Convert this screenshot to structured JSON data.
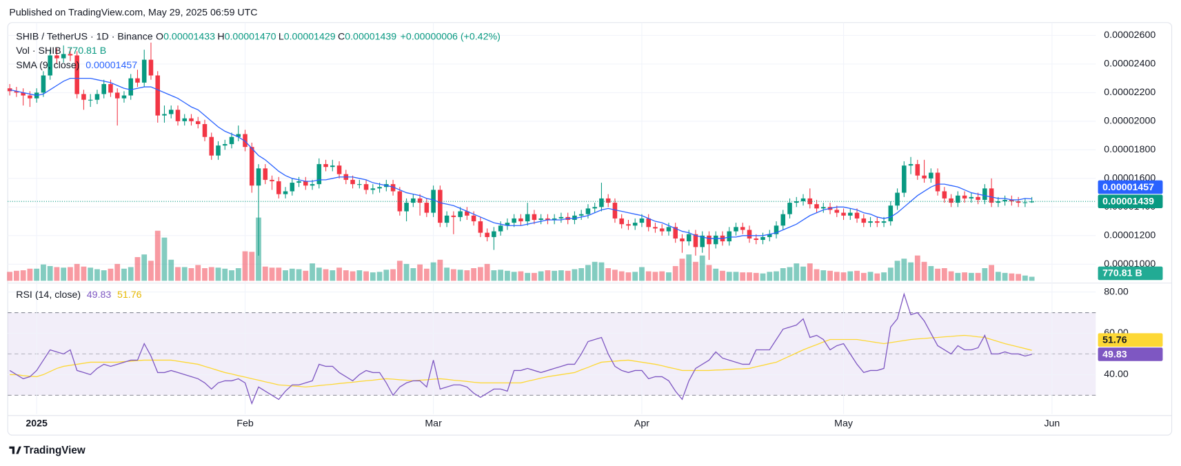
{
  "chart_data": {
    "type": "candlestick",
    "published": "Published on TradingView.com, May 29, 2025 06:59 UTC",
    "brand": "TradingView",
    "legend": {
      "symbol": "SHIB / TetherUS · 1D · Binance",
      "fields": [
        {
          "key": "O",
          "value": "0.00001433"
        },
        {
          "key": "H",
          "value": "0.00001470"
        },
        {
          "key": "L",
          "value": "0.00001429"
        },
        {
          "key": "C",
          "value": "0.00001439"
        }
      ],
      "change": "+0.00000006 (+0.42%)"
    },
    "volume_legend": {
      "name": "Vol · SHIB",
      "value": "770.81 B"
    },
    "sma_legend": {
      "name": "SMA (9, close)",
      "value": "0.00001457"
    },
    "rsi_legend": {
      "name": "RSI (14, close)",
      "value": "49.83",
      "ma_value": "51.76"
    },
    "up_color": "#089981",
    "down_color": "#f23645",
    "sma_color": "#2962ff",
    "rsi_color": "#7e57c2",
    "rsi_ma_color": "#fdd835",
    "xlim": [
      -0.3,
      161.5
    ],
    "xticks": [
      {
        "value": 4,
        "label": "2025"
      },
      {
        "value": 35,
        "label": "Feb"
      },
      {
        "value": 63,
        "label": "Mar"
      },
      {
        "value": 94,
        "label": "Apr"
      },
      {
        "value": 124,
        "label": "May"
      },
      {
        "value": 155,
        "label": "Jun"
      }
    ],
    "ylim": [
      8.84e-06,
      2.674e-05
    ],
    "yticks": [
      {
        "value": 2.6e-05,
        "label": "0.00002600"
      },
      {
        "value": 2.4e-05,
        "label": "0.00002400"
      },
      {
        "value": 2.2e-05,
        "label": "0.00002200"
      },
      {
        "value": 2e-05,
        "label": "0.00002000"
      },
      {
        "value": 1.8e-05,
        "label": "0.00001800"
      },
      {
        "value": 1.6e-05,
        "label": "0.00001600"
      },
      {
        "value": 1.4e-05,
        "label": "0.00001400"
      },
      {
        "value": 1.2e-05,
        "label": "0.00001200"
      },
      {
        "value": 1e-05,
        "label": "0.00001000"
      }
    ],
    "rsi_ylim": [
      20.9,
      83.6
    ],
    "rsi_yticks": [
      {
        "value": 80,
        "label": "80.00"
      },
      {
        "value": 60,
        "label": "60.00"
      },
      {
        "value": 40,
        "label": "40.00"
      }
    ],
    "rsi_levels": [
      70,
      50,
      30
    ],
    "grid": true,
    "open": [
      2.23e-05,
      2.21e-05,
      2.2e-05,
      2.18e-05,
      2.16e-05,
      2.2e-05,
      2.32e-05,
      2.46e-05,
      2.44e-05,
      2.47e-05,
      2.46e-05,
      2.19e-05,
      2.15e-05,
      2.15e-05,
      2.19e-05,
      2.26e-05,
      2.2e-05,
      2.16e-05,
      2.18e-05,
      2.3e-05,
      2.27e-05,
      2.43e-05,
      2.32e-05,
      2.04e-05,
      2.05e-05,
      2.08e-05,
      2e-05,
      2.02e-05,
      2e-05,
      1.98e-05,
      1.89e-05,
      1.76e-05,
      1.83e-05,
      1.84e-05,
      1.89e-05,
      1.91e-05,
      1.82e-05,
      1.55e-05,
      1.67e-05,
      1.59e-05,
      1.58e-05,
      1.49e-05,
      1.51e-05,
      1.57e-05,
      1.58e-05,
      1.55e-05,
      1.56e-05,
      1.7e-05,
      1.68e-05,
      1.69e-05,
      1.63e-05,
      1.59e-05,
      1.56e-05,
      1.56e-05,
      1.52e-05,
      1.53e-05,
      1.54e-05,
      1.56e-05,
      1.51e-05,
      1.37e-05,
      1.43e-05,
      1.46e-05,
      1.43e-05,
      1.36e-05,
      1.52e-05,
      1.29e-05,
      1.34e-05,
      1.33e-05,
      1.37e-05,
      1.34e-05,
      1.3e-05,
      1.22e-05,
      1.19e-05,
      1.23e-05,
      1.27e-05,
      1.29e-05,
      1.32e-05,
      1.3e-05,
      1.35e-05,
      1.31e-05,
      1.32e-05,
      1.31e-05,
      1.32e-05,
      1.33e-05,
      1.31e-05,
      1.34e-05,
      1.35e-05,
      1.39e-05,
      1.4e-05,
      1.46e-05,
      1.43e-05,
      1.32e-05,
      1.28e-05,
      1.27e-05,
      1.29e-05,
      1.32e-05,
      1.26e-05,
      1.25e-05,
      1.23e-05,
      1.26e-05,
      1.18e-05,
      1.16e-05,
      1.21e-05,
      1.12e-05,
      1.2e-05,
      1.14e-05,
      1.2e-05,
      1.16e-05,
      1.23e-05,
      1.26e-05,
      1.24e-05,
      1.18e-05,
      1.17e-05,
      1.19e-05,
      1.21e-05,
      1.27e-05,
      1.35e-05,
      1.43e-05,
      1.44e-05,
      1.46e-05,
      1.42e-05,
      1.39e-05,
      1.4e-05,
      1.38e-05,
      1.36e-05,
      1.34e-05,
      1.36e-05,
      1.32e-05,
      1.29e-05,
      1.3e-05,
      1.29e-05,
      1.3e-05,
      1.41e-05,
      1.5e-05,
      1.69e-05,
      1.7e-05,
      1.62e-05,
      1.6e-05,
      1.64e-05,
      1.51e-05,
      1.46e-05,
      1.43e-05,
      1.48e-05,
      1.46e-05,
      1.47e-05,
      1.45e-05,
      1.53e-05,
      1.43e-05,
      1.44e-05,
      1.45e-05,
      1.44e-05,
      1.43e-05,
      1.433e-05
    ],
    "high": [
      2.26e-05,
      2.24e-05,
      2.23e-05,
      2.21e-05,
      2.23e-05,
      2.35e-05,
      2.5e-05,
      2.51e-05,
      2.53e-05,
      2.51e-05,
      2.49e-05,
      2.22e-05,
      2.19e-05,
      2.22e-05,
      2.29e-05,
      2.29e-05,
      2.23e-05,
      2.21e-05,
      2.33e-05,
      2.36e-05,
      2.5e-05,
      2.55e-05,
      2.35e-05,
      2.11e-05,
      2.11e-05,
      2.11e-05,
      2.05e-05,
      2.05e-05,
      2.03e-05,
      2.01e-05,
      1.92e-05,
      1.86e-05,
      1.87e-05,
      1.92e-05,
      1.97e-05,
      1.94e-05,
      1.85e-05,
      1.7e-05,
      1.7e-05,
      1.62e-05,
      1.61e-05,
      1.54e-05,
      1.6e-05,
      1.61e-05,
      1.61e-05,
      1.59e-05,
      1.74e-05,
      1.73e-05,
      1.73e-05,
      1.72e-05,
      1.66e-05,
      1.62e-05,
      1.59e-05,
      1.59e-05,
      1.56e-05,
      1.57e-05,
      1.59e-05,
      1.59e-05,
      1.54e-05,
      1.46e-05,
      1.49e-05,
      1.49e-05,
      1.46e-05,
      1.55e-05,
      1.55e-05,
      1.37e-05,
      1.37e-05,
      1.4e-05,
      1.4e-05,
      1.37e-05,
      1.33e-05,
      1.25e-05,
      1.26e-05,
      1.3e-05,
      1.32e-05,
      1.35e-05,
      1.35e-05,
      1.43e-05,
      1.38e-05,
      1.35e-05,
      1.35e-05,
      1.35e-05,
      1.36e-05,
      1.36e-05,
      1.37e-05,
      1.38e-05,
      1.42e-05,
      1.43e-05,
      1.57e-05,
      1.49e-05,
      1.46e-05,
      1.35e-05,
      1.31e-05,
      1.32e-05,
      1.35e-05,
      1.35e-05,
      1.29e-05,
      1.28e-05,
      1.29e-05,
      1.29e-05,
      1.21e-05,
      1.24e-05,
      1.24e-05,
      1.23e-05,
      1.23e-05,
      1.23e-05,
      1.23e-05,
      1.26e-05,
      1.29e-05,
      1.29e-05,
      1.27e-05,
      1.21e-05,
      1.22e-05,
      1.24e-05,
      1.3e-05,
      1.38e-05,
      1.46e-05,
      1.47e-05,
      1.49e-05,
      1.53e-05,
      1.45e-05,
      1.43e-05,
      1.43e-05,
      1.41e-05,
      1.39e-05,
      1.39e-05,
      1.39e-05,
      1.35e-05,
      1.33e-05,
      1.33e-05,
      1.33e-05,
      1.44e-05,
      1.53e-05,
      1.72e-05,
      1.75e-05,
      1.73e-05,
      1.73e-05,
      1.67e-05,
      1.67e-05,
      1.54e-05,
      1.49e-05,
      1.51e-05,
      1.51e-05,
      1.5e-05,
      1.5e-05,
      1.56e-05,
      1.6e-05,
      1.47e-05,
      1.48e-05,
      1.48e-05,
      1.47e-05,
      1.46e-05,
      1.47e-05
    ],
    "low": [
      2.18e-05,
      2.17e-05,
      2.11e-05,
      2.1e-05,
      2.13e-05,
      2.17e-05,
      2.29e-05,
      2.4e-05,
      2.41e-05,
      2.42e-05,
      2.16e-05,
      2.08e-05,
      2.1e-05,
      2.12e-05,
      2.16e-05,
      2.17e-05,
      1.97e-05,
      2.13e-05,
      2.15e-05,
      2.24e-05,
      2.24e-05,
      2.29e-05,
      1.99e-05,
      1.99e-05,
      2.02e-05,
      1.97e-05,
      1.97e-05,
      1.97e-05,
      1.95e-05,
      1.86e-05,
      1.73e-05,
      1.73e-05,
      1.8e-05,
      1.81e-05,
      1.86e-05,
      1.79e-05,
      1.5e-05,
      1.06e-05,
      1.56e-05,
      1.52e-05,
      1.46e-05,
      1.46e-05,
      1.48e-05,
      1.54e-05,
      1.52e-05,
      1.52e-05,
      1.53e-05,
      1.65e-05,
      1.65e-05,
      1.6e-05,
      1.56e-05,
      1.53e-05,
      1.53e-05,
      1.49e-05,
      1.49e-05,
      1.5e-05,
      1.51e-05,
      1.48e-05,
      1.34e-05,
      1.3e-05,
      1.4e-05,
      1.34e-05,
      1.33e-05,
      1.33e-05,
      1.26e-05,
      1.26e-05,
      1.21e-05,
      1.3e-05,
      1.31e-05,
      1.27e-05,
      1.19e-05,
      1.16e-05,
      1.1e-05,
      1.2e-05,
      1.24e-05,
      1.26e-05,
      1.27e-05,
      1.27e-05,
      1.28e-05,
      1.28e-05,
      1.28e-05,
      1.28e-05,
      1.29e-05,
      1.28e-05,
      1.28e-05,
      1.31e-05,
      1.32e-05,
      1.36e-05,
      1.37e-05,
      1.4e-05,
      1.29e-05,
      1.25e-05,
      1.24e-05,
      1.24e-05,
      1.26e-05,
      1.23e-05,
      1.22e-05,
      1.2e-05,
      1.2e-05,
      1.15e-05,
      1.08e-05,
      1.13e-05,
      1.06e-05,
      1.08e-05,
      1.03e-05,
      1.11e-05,
      1.13e-05,
      1.13e-05,
      1.2e-05,
      1.21e-05,
      1.15e-05,
      1.14e-05,
      1.14e-05,
      1.16e-05,
      1.18e-05,
      1.24e-05,
      1.32e-05,
      1.4e-05,
      1.41e-05,
      1.39e-05,
      1.36e-05,
      1.36e-05,
      1.35e-05,
      1.33e-05,
      1.31e-05,
      1.31e-05,
      1.29e-05,
      1.26e-05,
      1.26e-05,
      1.26e-05,
      1.26e-05,
      1.27e-05,
      1.38e-05,
      1.47e-05,
      1.63e-05,
      1.59e-05,
      1.57e-05,
      1.57e-05,
      1.48e-05,
      1.43e-05,
      1.4e-05,
      1.4e-05,
      1.43e-05,
      1.43e-05,
      1.42e-05,
      1.42e-05,
      1.4e-05,
      1.4e-05,
      1.41e-05,
      1.41e-05,
      1.4e-05,
      1.4e-05,
      1.429e-05
    ],
    "close": [
      2.21e-05,
      2.2e-05,
      2.18e-05,
      2.16e-05,
      2.2e-05,
      2.32e-05,
      2.46e-05,
      2.44e-05,
      2.47e-05,
      2.46e-05,
      2.19e-05,
      2.15e-05,
      2.15e-05,
      2.19e-05,
      2.26e-05,
      2.2e-05,
      2.16e-05,
      2.18e-05,
      2.3e-05,
      2.27e-05,
      2.43e-05,
      2.32e-05,
      2.04e-05,
      2.05e-05,
      2.08e-05,
      2e-05,
      2.02e-05,
      2e-05,
      1.98e-05,
      1.89e-05,
      1.76e-05,
      1.83e-05,
      1.84e-05,
      1.89e-05,
      1.91e-05,
      1.82e-05,
      1.55e-05,
      1.67e-05,
      1.59e-05,
      1.58e-05,
      1.49e-05,
      1.51e-05,
      1.57e-05,
      1.58e-05,
      1.55e-05,
      1.56e-05,
      1.7e-05,
      1.68e-05,
      1.69e-05,
      1.63e-05,
      1.59e-05,
      1.56e-05,
      1.56e-05,
      1.52e-05,
      1.53e-05,
      1.54e-05,
      1.56e-05,
      1.51e-05,
      1.37e-05,
      1.43e-05,
      1.46e-05,
      1.43e-05,
      1.36e-05,
      1.52e-05,
      1.29e-05,
      1.34e-05,
      1.33e-05,
      1.37e-05,
      1.34e-05,
      1.3e-05,
      1.22e-05,
      1.19e-05,
      1.23e-05,
      1.27e-05,
      1.29e-05,
      1.32e-05,
      1.3e-05,
      1.35e-05,
      1.31e-05,
      1.32e-05,
      1.31e-05,
      1.32e-05,
      1.33e-05,
      1.31e-05,
      1.34e-05,
      1.35e-05,
      1.39e-05,
      1.4e-05,
      1.46e-05,
      1.43e-05,
      1.32e-05,
      1.28e-05,
      1.27e-05,
      1.29e-05,
      1.32e-05,
      1.26e-05,
      1.25e-05,
      1.23e-05,
      1.26e-05,
      1.18e-05,
      1.16e-05,
      1.21e-05,
      1.12e-05,
      1.2e-05,
      1.14e-05,
      1.2e-05,
      1.16e-05,
      1.23e-05,
      1.26e-05,
      1.24e-05,
      1.18e-05,
      1.17e-05,
      1.19e-05,
      1.21e-05,
      1.27e-05,
      1.35e-05,
      1.43e-05,
      1.44e-05,
      1.46e-05,
      1.42e-05,
      1.39e-05,
      1.4e-05,
      1.38e-05,
      1.36e-05,
      1.34e-05,
      1.36e-05,
      1.32e-05,
      1.29e-05,
      1.3e-05,
      1.29e-05,
      1.3e-05,
      1.41e-05,
      1.5e-05,
      1.69e-05,
      1.7e-05,
      1.62e-05,
      1.6e-05,
      1.64e-05,
      1.51e-05,
      1.46e-05,
      1.43e-05,
      1.48e-05,
      1.46e-05,
      1.47e-05,
      1.45e-05,
      1.53e-05,
      1.43e-05,
      1.44e-05,
      1.45e-05,
      1.44e-05,
      1.43e-05,
      1.433e-05,
      1.439e-05
    ],
    "volume": [
      1700,
      1900,
      2000,
      2300,
      2300,
      3100,
      2800,
      2600,
      2500,
      2600,
      3200,
      2700,
      2500,
      2200,
      2000,
      2300,
      3200,
      2300,
      2600,
      4500,
      5000,
      3800,
      9500,
      8200,
      4000,
      2600,
      2600,
      2400,
      3000,
      2400,
      2600,
      2500,
      2300,
      2000,
      2400,
      5600,
      5500,
      12000,
      2700,
      2500,
      2500,
      2000,
      2300,
      2200,
      1900,
      3300,
      2500,
      2200,
      2000,
      2500,
      2000,
      1800,
      2000,
      1800,
      1600,
      1700,
      2100,
      2200,
      3800,
      3200,
      2400,
      3100,
      2300,
      3500,
      4000,
      2500,
      2200,
      2100,
      2000,
      2400,
      2600,
      3200,
      2000,
      2100,
      1900,
      1700,
      1800,
      1500,
      1500,
      1800,
      2000,
      1900,
      2000,
      1900,
      2200,
      2400,
      3000,
      3600,
      3500,
      2400,
      2100,
      1800,
      1600,
      1700,
      2600,
      1800,
      1700,
      1800,
      1600,
      2800,
      4200,
      5000,
      3600,
      4800,
      3000,
      2300,
      1900,
      1700,
      1700,
      1600,
      1600,
      1500,
      1400,
      1700,
      1800,
      2400,
      2600,
      3300,
      2700,
      3300,
      2200,
      2000,
      1900,
      1700,
      1600,
      1800,
      1900,
      1500,
      1700,
      1400,
      1600,
      2500,
      3800,
      4200,
      3500,
      4800,
      3600,
      2800,
      2300,
      2400,
      1800,
      1500,
      1600,
      1500,
      1500,
      2400,
      3000,
      1700,
      1500,
      1400,
      1300,
      1000,
      770.81
    ],
    "sma": [
      2.22e-05,
      2.21e-05,
      2.2e-05,
      2.19e-05,
      2.18e-05,
      2.19e-05,
      2.22e-05,
      2.25e-05,
      2.28e-05,
      2.3e-05,
      2.3e-05,
      2.3e-05,
      2.3e-05,
      2.29e-05,
      2.28e-05,
      2.27e-05,
      2.25e-05,
      2.23e-05,
      2.22e-05,
      2.23e-05,
      2.24e-05,
      2.24e-05,
      2.22e-05,
      2.2e-05,
      2.18e-05,
      2.16e-05,
      2.13e-05,
      2.1e-05,
      2.08e-05,
      2.04e-05,
      2e-05,
      1.96e-05,
      1.93e-05,
      1.91e-05,
      1.89e-05,
      1.86e-05,
      1.81e-05,
      1.76e-05,
      1.73e-05,
      1.69e-05,
      1.65e-05,
      1.62e-05,
      1.6e-05,
      1.59e-05,
      1.58e-05,
      1.58e-05,
      1.59e-05,
      1.59e-05,
      1.6e-05,
      1.61e-05,
      1.61e-05,
      1.61e-05,
      1.6e-05,
      1.59e-05,
      1.57e-05,
      1.56e-05,
      1.55e-05,
      1.54e-05,
      1.52e-05,
      1.5e-05,
      1.49e-05,
      1.48e-05,
      1.46e-05,
      1.45e-05,
      1.43e-05,
      1.42e-05,
      1.41e-05,
      1.39e-05,
      1.37e-05,
      1.35e-05,
      1.33e-05,
      1.31e-05,
      1.29e-05,
      1.28e-05,
      1.27e-05,
      1.27e-05,
      1.27e-05,
      1.28e-05,
      1.29e-05,
      1.3e-05,
      1.31e-05,
      1.31e-05,
      1.31e-05,
      1.32e-05,
      1.32e-05,
      1.33e-05,
      1.34e-05,
      1.36e-05,
      1.38e-05,
      1.39e-05,
      1.38e-05,
      1.37e-05,
      1.36e-05,
      1.35e-05,
      1.34e-05,
      1.32e-05,
      1.3e-05,
      1.29e-05,
      1.27e-05,
      1.25e-05,
      1.23e-05,
      1.22e-05,
      1.2e-05,
      1.19e-05,
      1.18e-05,
      1.18e-05,
      1.18e-05,
      1.19e-05,
      1.19e-05,
      1.2e-05,
      1.2e-05,
      1.2e-05,
      1.2e-05,
      1.21e-05,
      1.22e-05,
      1.24e-05,
      1.26e-05,
      1.28e-05,
      1.31e-05,
      1.34e-05,
      1.36e-05,
      1.38e-05,
      1.39e-05,
      1.4e-05,
      1.4e-05,
      1.39e-05,
      1.38e-05,
      1.36e-05,
      1.35e-05,
      1.33e-05,
      1.32e-05,
      1.33e-05,
      1.36e-05,
      1.4e-05,
      1.44e-05,
      1.48e-05,
      1.51e-05,
      1.54e-05,
      1.56e-05,
      1.56e-05,
      1.55e-05,
      1.54e-05,
      1.52e-05,
      1.5e-05,
      1.49e-05,
      1.48e-05,
      1.47e-05,
      1.46e-05,
      1.46e-05,
      1.45e-05,
      1.45e-05,
      1.46e-05,
      1.457e-05
    ],
    "rsi": [
      42,
      40,
      38,
      39,
      42,
      47,
      52,
      51,
      50,
      52,
      42,
      41,
      40,
      43,
      45,
      44,
      45,
      46,
      47,
      47,
      55,
      49,
      41,
      41,
      42,
      41,
      40,
      39,
      38,
      36,
      33,
      36,
      37,
      37,
      38,
      36,
      26,
      34,
      32,
      30,
      28,
      32,
      35,
      35,
      36,
      37,
      45,
      44,
      44,
      41,
      39,
      37,
      40,
      42,
      41,
      41,
      36,
      30,
      34,
      36,
      37,
      37,
      34,
      47,
      33,
      34,
      35,
      35,
      34,
      31,
      29,
      31,
      33,
      33,
      32,
      42,
      42,
      43,
      42,
      41,
      42,
      43,
      44,
      45,
      45,
      50,
      56,
      57,
      58,
      50,
      44,
      42,
      41,
      42,
      42,
      38,
      39,
      39,
      37,
      32,
      28,
      37,
      43,
      45,
      47,
      51,
      48,
      47,
      46,
      45,
      45,
      52,
      52,
      52,
      57,
      62,
      63,
      64,
      67,
      58,
      59,
      57,
      52,
      54,
      55,
      50,
      45,
      41,
      42,
      42,
      43,
      63,
      67,
      79,
      69,
      70,
      66,
      60,
      54,
      52,
      50,
      54,
      52,
      52,
      53,
      59,
      50,
      50,
      51,
      50,
      50,
      49,
      49.83
    ],
    "rsi_ma": [
      40,
      40,
      39.5,
      39.2,
      39,
      40,
      41.5,
      43,
      44,
      44.5,
      45,
      45.5,
      46,
      46,
      46,
      46,
      46,
      46.3,
      46.5,
      46.8,
      47,
      47,
      47,
      47,
      47,
      46.5,
      46,
      45.5,
      45,
      44,
      43,
      42,
      41,
      40.3,
      39.5,
      38.8,
      38,
      37.3,
      36.5,
      35.8,
      35,
      34.8,
      34.5,
      34.3,
      34,
      34.3,
      34.7,
      35,
      35.3,
      35.7,
      36,
      36.3,
      36.7,
      37,
      37.3,
      37.7,
      38,
      37.8,
      37.5,
      37.3,
      37,
      37.3,
      37.5,
      37.8,
      38,
      37.7,
      37.3,
      37,
      36.7,
      36.3,
      36,
      36,
      36,
      36,
      36,
      36,
      36,
      36.8,
      37.5,
      38.3,
      39,
      39.5,
      40,
      40.5,
      41,
      42.3,
      43.5,
      44.8,
      46,
      46.3,
      46.5,
      46.8,
      47,
      46.5,
      46,
      45.5,
      45,
      44.3,
      43.5,
      42.8,
      42,
      42,
      42,
      42,
      42,
      42.2,
      42.3,
      42.5,
      42.7,
      42.8,
      43,
      43.8,
      44.5,
      45.3,
      46,
      47.5,
      49,
      50.5,
      52,
      53.3,
      54.5,
      55.8,
      57,
      57,
      57,
      57,
      57,
      56.5,
      56,
      55.5,
      55,
      55.5,
      56,
      56.5,
      57,
      57.3,
      57.5,
      57.8,
      58,
      58.3,
      58.5,
      58.8,
      59,
      58.7,
      58.3,
      58,
      57,
      56,
      55,
      54.2,
      53.4,
      52.6,
      51.76
    ]
  }
}
